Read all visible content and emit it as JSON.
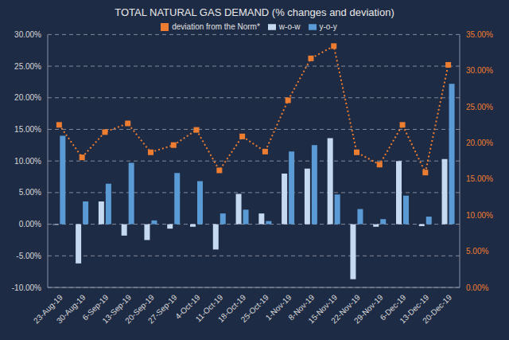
{
  "chart_data": {
    "type": "bar",
    "title": "TOTAL NATURAL GAS DEMAND (% changes and deviation)",
    "categories": [
      "23-Aug-19",
      "30-Aug-19",
      "6-Sep-19",
      "13-Sep-19",
      "20-Sep-19",
      "27-Sep-19",
      "4-Oct-19",
      "11-Oct-19",
      "18-Oct-19",
      "25-Oct-19",
      "1-Nov-19",
      "8-Nov-19",
      "15-Nov-19",
      "22-Nov-19",
      "29-Nov-19",
      "6-Dec-19",
      "13-Dec-19",
      "20-Dec-19"
    ],
    "series": [
      {
        "name": "w-o-w",
        "type": "bar",
        "color": "#c5d9f1",
        "values": [
          -0.1,
          -6.2,
          3.6,
          -1.8,
          -2.5,
          -0.7,
          -0.4,
          -4.0,
          4.8,
          1.7,
          8.0,
          8.8,
          13.6,
          -8.7,
          -0.4,
          10.0,
          -0.3,
          10.3
        ]
      },
      {
        "name": "y-o-y",
        "type": "bar",
        "color": "#5b9bd5",
        "values": [
          14.0,
          3.6,
          6.4,
          9.7,
          0.6,
          8.1,
          6.8,
          1.7,
          2.3,
          0.5,
          11.5,
          12.5,
          4.7,
          2.4,
          0.8,
          4.5,
          1.2,
          22.2
        ]
      },
      {
        "name": "deviation from the Norm*",
        "type": "line",
        "axis": "y2",
        "color": "#ed7d31",
        "marker": "square",
        "line_style": "dotted",
        "values": [
          22.5,
          18.0,
          21.5,
          22.7,
          18.7,
          19.7,
          21.8,
          16.2,
          20.9,
          18.8,
          25.9,
          31.7,
          33.4,
          18.7,
          17.0,
          22.5,
          15.9,
          30.8
        ]
      }
    ],
    "ylim": [
      -10,
      30
    ],
    "yticks": [
      {
        "value": -10,
        "label": "-10.00%"
      },
      {
        "value": -5,
        "label": "-5.00%"
      },
      {
        "value": 0,
        "label": "0.00%"
      },
      {
        "value": 5,
        "label": "5.00%"
      },
      {
        "value": 10,
        "label": "10.00%"
      },
      {
        "value": 15,
        "label": "15.00%"
      },
      {
        "value": 20,
        "label": "20.00%"
      },
      {
        "value": 25,
        "label": "25.00%"
      },
      {
        "value": 30,
        "label": "30.00%"
      }
    ],
    "y2lim": [
      0,
      35
    ],
    "y2ticks": [
      {
        "value": 0,
        "label": "0.00%"
      },
      {
        "value": 5,
        "label": "5.00%"
      },
      {
        "value": 10,
        "label": "10.00%"
      },
      {
        "value": 15,
        "label": "15.00%"
      },
      {
        "value": 20,
        "label": "20.00%"
      },
      {
        "value": 25,
        "label": "25.00%"
      },
      {
        "value": 30,
        "label": "30.00%"
      },
      {
        "value": 35,
        "label": "35.00%"
      }
    ],
    "grid": true,
    "legend": "top"
  }
}
